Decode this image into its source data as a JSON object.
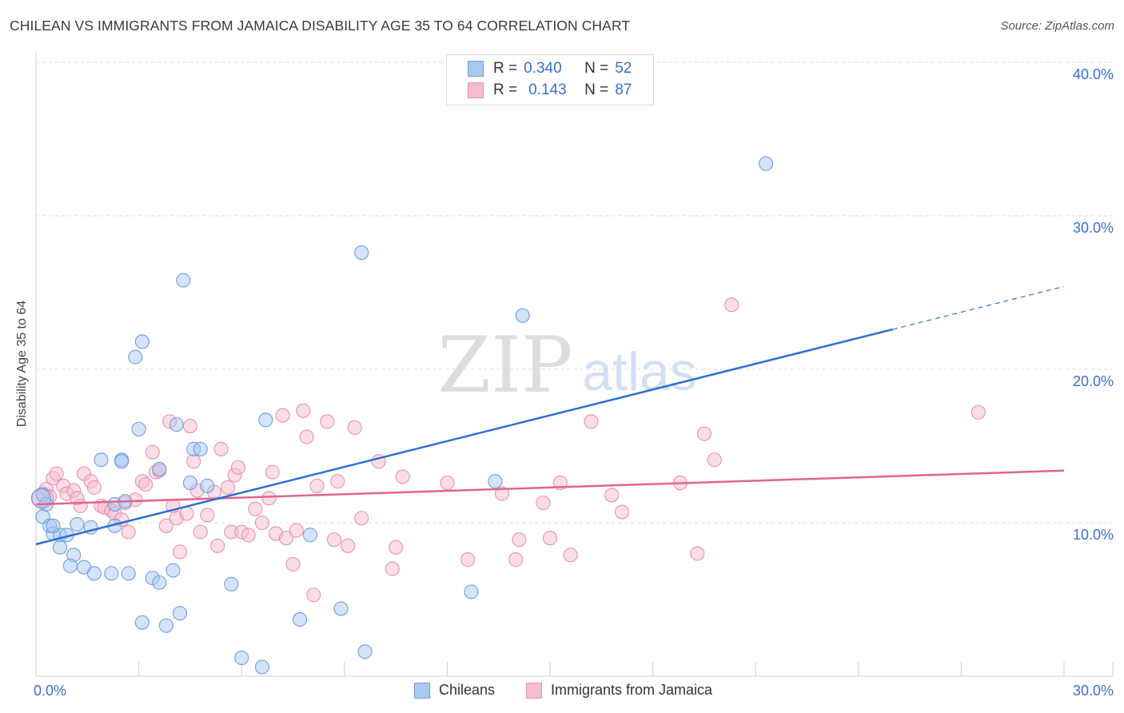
{
  "title": "CHILEAN VS IMMIGRANTS FROM JAMAICA DISABILITY AGE 35 TO 64 CORRELATION CHART",
  "source": "Source: ZipAtlas.com",
  "watermark": {
    "zip": "ZIP",
    "atlas": "atlas"
  },
  "legend": {
    "rows": [
      {
        "r_label": "R =",
        "r_value": "0.340",
        "n_label": "N =",
        "n_value": "52"
      },
      {
        "r_label": "R =",
        "r_value": "0.143",
        "n_label": "N =",
        "n_value": "87"
      }
    ]
  },
  "bottom_legend": [
    "Chileans",
    "Immigrants from Jamaica"
  ],
  "colors": {
    "blue_fill": "#a9c8f2",
    "blue_stroke": "#6f9ee0",
    "blue_line": "#2e6fd2",
    "pink_fill": "#f6bdd0",
    "pink_stroke": "#ec8fae",
    "pink_line": "#e2648f",
    "axis_text": "#3a6fd0",
    "grid": "#dddddd"
  },
  "chart_data": {
    "type": "scatter",
    "xlabel": "",
    "ylabel": "Disability Age 35 to 64",
    "xlim": [
      0,
      30
    ],
    "ylim": [
      0,
      40
    ],
    "x_tick_labels": [
      "0.0%",
      "30.0%"
    ],
    "y_ticks": [
      10,
      20,
      30,
      40
    ],
    "y_tick_labels": [
      "10.0%",
      "20.0%",
      "30.0%",
      "40.0%"
    ],
    "grid": true,
    "legend_position": "top-center",
    "series": [
      {
        "name": "Chileans",
        "r": 0.34,
        "n": 52,
        "trend": {
          "x0": 0,
          "y0": 8.6,
          "x1": 25,
          "y1": 22.6,
          "dash_to_x": 30,
          "dash_to_y": 25.4
        },
        "points": [
          [
            0.2,
            11.8
          ],
          [
            0.3,
            11.2
          ],
          [
            0.2,
            10.4
          ],
          [
            0.4,
            9.8
          ],
          [
            0.5,
            9.3
          ],
          [
            0.7,
            9.2
          ],
          [
            0.9,
            9.2
          ],
          [
            0.5,
            9.8
          ],
          [
            0.7,
            8.4
          ],
          [
            1.2,
            9.9
          ],
          [
            1.6,
            9.7
          ],
          [
            1.1,
            7.9
          ],
          [
            1.0,
            7.2
          ],
          [
            1.4,
            7.1
          ],
          [
            1.7,
            6.7
          ],
          [
            2.2,
            6.7
          ],
          [
            2.7,
            6.7
          ],
          [
            3.4,
            6.4
          ],
          [
            3.6,
            6.1
          ],
          [
            4.0,
            6.9
          ],
          [
            1.9,
            14.1
          ],
          [
            2.5,
            14.1
          ],
          [
            2.5,
            14.0
          ],
          [
            2.3,
            11.2
          ],
          [
            2.6,
            11.4
          ],
          [
            2.3,
            9.8
          ],
          [
            3.0,
            16.1
          ],
          [
            3.1,
            21.8
          ],
          [
            2.9,
            20.8
          ],
          [
            4.3,
            25.8
          ],
          [
            4.1,
            16.4
          ],
          [
            4.5,
            12.6
          ],
          [
            4.6,
            14.8
          ],
          [
            4.8,
            14.8
          ],
          [
            5.0,
            12.4
          ],
          [
            3.6,
            13.5
          ],
          [
            6.7,
            16.7
          ],
          [
            3.1,
            3.5
          ],
          [
            3.8,
            3.3
          ],
          [
            4.2,
            4.1
          ],
          [
            5.7,
            6.0
          ],
          [
            6.0,
            1.2
          ],
          [
            6.6,
            0.6
          ],
          [
            7.7,
            3.7
          ],
          [
            8.0,
            9.2
          ],
          [
            8.9,
            4.4
          ],
          [
            9.5,
            27.6
          ],
          [
            9.6,
            1.6
          ],
          [
            12.7,
            5.5
          ],
          [
            13.4,
            12.7
          ],
          [
            14.2,
            23.5
          ],
          [
            21.3,
            33.4
          ]
        ]
      },
      {
        "name": "Immigrants from Jamaica",
        "r": 0.143,
        "n": 87,
        "trend": {
          "x0": 0,
          "y0": 11.2,
          "x1": 30,
          "y1": 13.4
        },
        "points": [
          [
            0.2,
            11.9
          ],
          [
            0.3,
            12.2
          ],
          [
            0.4,
            11.7
          ],
          [
            0.5,
            12.9
          ],
          [
            0.6,
            13.2
          ],
          [
            0.8,
            12.4
          ],
          [
            0.9,
            11.9
          ],
          [
            1.1,
            12.1
          ],
          [
            1.2,
            11.6
          ],
          [
            1.3,
            11.1
          ],
          [
            1.4,
            13.2
          ],
          [
            1.6,
            12.7
          ],
          [
            1.7,
            12.3
          ],
          [
            1.9,
            11.1
          ],
          [
            2.0,
            11.0
          ],
          [
            2.2,
            10.8
          ],
          [
            2.3,
            10.6
          ],
          [
            2.5,
            10.2
          ],
          [
            2.6,
            11.3
          ],
          [
            2.7,
            9.4
          ],
          [
            2.9,
            11.5
          ],
          [
            3.1,
            12.7
          ],
          [
            3.2,
            12.5
          ],
          [
            3.4,
            14.6
          ],
          [
            3.5,
            13.3
          ],
          [
            3.6,
            13.4
          ],
          [
            3.8,
            9.8
          ],
          [
            3.9,
            16.6
          ],
          [
            4.0,
            11.1
          ],
          [
            4.1,
            10.3
          ],
          [
            4.2,
            8.1
          ],
          [
            4.4,
            10.6
          ],
          [
            4.5,
            16.3
          ],
          [
            4.6,
            14.0
          ],
          [
            4.7,
            12.1
          ],
          [
            4.8,
            9.4
          ],
          [
            5.0,
            10.5
          ],
          [
            5.2,
            12.0
          ],
          [
            5.3,
            8.5
          ],
          [
            5.4,
            14.8
          ],
          [
            5.6,
            12.3
          ],
          [
            5.7,
            9.4
          ],
          [
            5.8,
            13.1
          ],
          [
            5.9,
            13.6
          ],
          [
            6.0,
            9.4
          ],
          [
            6.2,
            9.2
          ],
          [
            6.4,
            10.9
          ],
          [
            6.6,
            10.0
          ],
          [
            6.8,
            11.6
          ],
          [
            6.9,
            13.3
          ],
          [
            7.0,
            9.3
          ],
          [
            7.2,
            17.0
          ],
          [
            7.3,
            9.0
          ],
          [
            7.5,
            7.3
          ],
          [
            7.6,
            9.5
          ],
          [
            7.8,
            17.3
          ],
          [
            7.9,
            15.6
          ],
          [
            8.1,
            5.3
          ],
          [
            8.2,
            12.4
          ],
          [
            8.5,
            16.6
          ],
          [
            8.7,
            8.9
          ],
          [
            8.8,
            12.7
          ],
          [
            9.1,
            8.5
          ],
          [
            9.3,
            16.2
          ],
          [
            9.5,
            10.3
          ],
          [
            10.0,
            14.0
          ],
          [
            10.4,
            7.0
          ],
          [
            10.5,
            8.4
          ],
          [
            10.7,
            13.0
          ],
          [
            12.0,
            12.6
          ],
          [
            12.6,
            7.6
          ],
          [
            13.6,
            11.9
          ],
          [
            14.0,
            7.6
          ],
          [
            14.1,
            8.9
          ],
          [
            14.8,
            11.3
          ],
          [
            15.0,
            9.0
          ],
          [
            15.3,
            12.6
          ],
          [
            15.6,
            7.9
          ],
          [
            16.2,
            16.6
          ],
          [
            16.8,
            11.8
          ],
          [
            17.1,
            10.7
          ],
          [
            18.8,
            12.6
          ],
          [
            19.3,
            8.0
          ],
          [
            19.5,
            15.8
          ],
          [
            19.8,
            14.1
          ],
          [
            20.3,
            24.2
          ],
          [
            27.5,
            17.2
          ]
        ]
      }
    ]
  }
}
